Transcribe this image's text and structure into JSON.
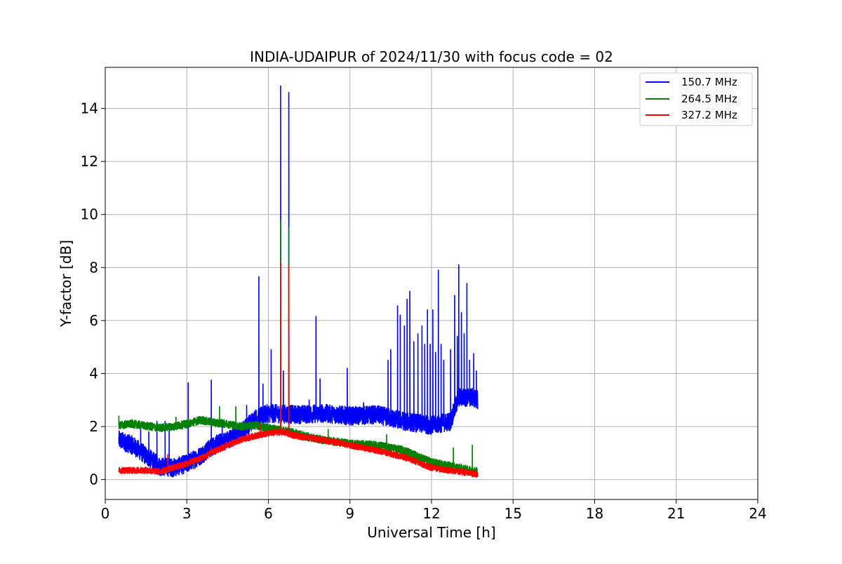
{
  "chart_data": {
    "type": "line",
    "title": "INDIA-UDAIPUR of 2024/11/30 with focus code = 02",
    "xlabel": "Universal Time [h]",
    "ylabel": "Y-factor [dB]",
    "xlim": [
      0,
      24
    ],
    "ylim": [
      -0.75,
      15.55
    ],
    "xticks": [
      0,
      3,
      6,
      9,
      12,
      15,
      18,
      21,
      24
    ],
    "yticks": [
      0,
      2,
      4,
      6,
      8,
      10,
      12,
      14
    ],
    "grid": true,
    "legend_position": "top-right",
    "series": [
      {
        "name": "150.7 MHz",
        "color": "#0000ff",
        "noise": 0.35,
        "points": [
          [
            0.5,
            1.5
          ],
          [
            1.0,
            1.3
          ],
          [
            1.5,
            0.9
          ],
          [
            2.0,
            0.5
          ],
          [
            2.5,
            0.45
          ],
          [
            3.0,
            0.6
          ],
          [
            3.5,
            0.9
          ],
          [
            4.0,
            1.3
          ],
          [
            4.5,
            1.5
          ],
          [
            5.0,
            1.8
          ],
          [
            5.5,
            2.3
          ],
          [
            6.0,
            2.5
          ],
          [
            7.0,
            2.45
          ],
          [
            8.0,
            2.5
          ],
          [
            9.0,
            2.4
          ],
          [
            10.0,
            2.45
          ],
          [
            11.0,
            2.2
          ],
          [
            12.0,
            2.05
          ],
          [
            12.7,
            2.2
          ],
          [
            13.0,
            3.1
          ],
          [
            13.5,
            3.1
          ],
          [
            13.7,
            3.0
          ]
        ],
        "spikes": [
          [
            1.3,
            2.0
          ],
          [
            1.6,
            1.8
          ],
          [
            1.9,
            2.2
          ],
          [
            2.2,
            2.2
          ],
          [
            2.35,
            1.9
          ],
          [
            3.05,
            3.65
          ],
          [
            3.9,
            3.75
          ],
          [
            4.3,
            2.1
          ],
          [
            5.2,
            2.8
          ],
          [
            5.65,
            7.65
          ],
          [
            5.8,
            3.6
          ],
          [
            6.1,
            4.9
          ],
          [
            6.45,
            14.85
          ],
          [
            6.55,
            4.1
          ],
          [
            6.75,
            14.6
          ],
          [
            7.5,
            3.0
          ],
          [
            7.75,
            6.15
          ],
          [
            7.9,
            3.8
          ],
          [
            8.9,
            4.2
          ],
          [
            9.5,
            2.9
          ],
          [
            10.4,
            4.5
          ],
          [
            10.5,
            4.9
          ],
          [
            10.75,
            6.55
          ],
          [
            10.85,
            6.2
          ],
          [
            11.0,
            5.8
          ],
          [
            11.1,
            6.8
          ],
          [
            11.2,
            7.1
          ],
          [
            11.35,
            5.2
          ],
          [
            11.5,
            5.5
          ],
          [
            11.65,
            5.8
          ],
          [
            11.75,
            5.1
          ],
          [
            11.85,
            6.4
          ],
          [
            11.95,
            5.1
          ],
          [
            12.05,
            6.4
          ],
          [
            12.15,
            4.8
          ],
          [
            12.25,
            7.9
          ],
          [
            12.35,
            5.1
          ],
          [
            12.45,
            4.5
          ],
          [
            12.7,
            4.9
          ],
          [
            12.85,
            6.95
          ],
          [
            12.95,
            5.4
          ],
          [
            13.0,
            8.1
          ],
          [
            13.1,
            6.3
          ],
          [
            13.2,
            5.5
          ],
          [
            13.3,
            7.4
          ],
          [
            13.4,
            4.5
          ],
          [
            13.55,
            4.75
          ],
          [
            13.65,
            4.1
          ]
        ]
      },
      {
        "name": "264.5 MHz",
        "color": "#008000",
        "noise": 0.15,
        "points": [
          [
            0.5,
            2.05
          ],
          [
            1.0,
            2.1
          ],
          [
            2.0,
            1.95
          ],
          [
            2.5,
            2.0
          ],
          [
            3.0,
            2.1
          ],
          [
            3.5,
            2.25
          ],
          [
            4.0,
            2.15
          ],
          [
            4.5,
            2.1
          ],
          [
            5.0,
            2.0
          ],
          [
            5.5,
            2.05
          ],
          [
            6.0,
            1.95
          ],
          [
            6.5,
            1.85
          ],
          [
            7.0,
            1.75
          ],
          [
            7.5,
            1.6
          ],
          [
            8.0,
            1.5
          ],
          [
            9.0,
            1.35
          ],
          [
            10.0,
            1.3
          ],
          [
            11.0,
            1.1
          ],
          [
            12.0,
            0.65
          ],
          [
            13.0,
            0.45
          ],
          [
            13.7,
            0.3
          ]
        ],
        "spikes": [
          [
            0.5,
            2.4
          ],
          [
            2.6,
            2.35
          ],
          [
            4.2,
            2.75
          ],
          [
            4.8,
            2.75
          ],
          [
            5.6,
            2.2
          ],
          [
            6.45,
            9.75
          ],
          [
            6.75,
            9.5
          ],
          [
            8.2,
            1.9
          ],
          [
            10.35,
            1.7
          ],
          [
            12.8,
            1.2
          ],
          [
            13.5,
            1.3
          ]
        ]
      },
      {
        "name": "327.2 MHz",
        "color": "#ff0000",
        "noise": 0.12,
        "points": [
          [
            0.5,
            0.35
          ],
          [
            1.0,
            0.35
          ],
          [
            1.5,
            0.35
          ],
          [
            2.0,
            0.3
          ],
          [
            2.5,
            0.45
          ],
          [
            3.0,
            0.6
          ],
          [
            3.5,
            0.8
          ],
          [
            4.0,
            1.05
          ],
          [
            4.5,
            1.3
          ],
          [
            5.0,
            1.5
          ],
          [
            5.5,
            1.65
          ],
          [
            6.0,
            1.75
          ],
          [
            6.5,
            1.8
          ],
          [
            7.0,
            1.65
          ],
          [
            8.0,
            1.5
          ],
          [
            9.0,
            1.3
          ],
          [
            10.0,
            1.1
          ],
          [
            11.0,
            0.85
          ],
          [
            12.0,
            0.45
          ],
          [
            13.0,
            0.3
          ],
          [
            13.7,
            0.2
          ]
        ],
        "spikes": [
          [
            2.3,
            0.95
          ],
          [
            3.9,
            1.2
          ],
          [
            5.7,
            2.1
          ],
          [
            6.45,
            8.2
          ],
          [
            6.75,
            8.1
          ]
        ]
      }
    ]
  }
}
